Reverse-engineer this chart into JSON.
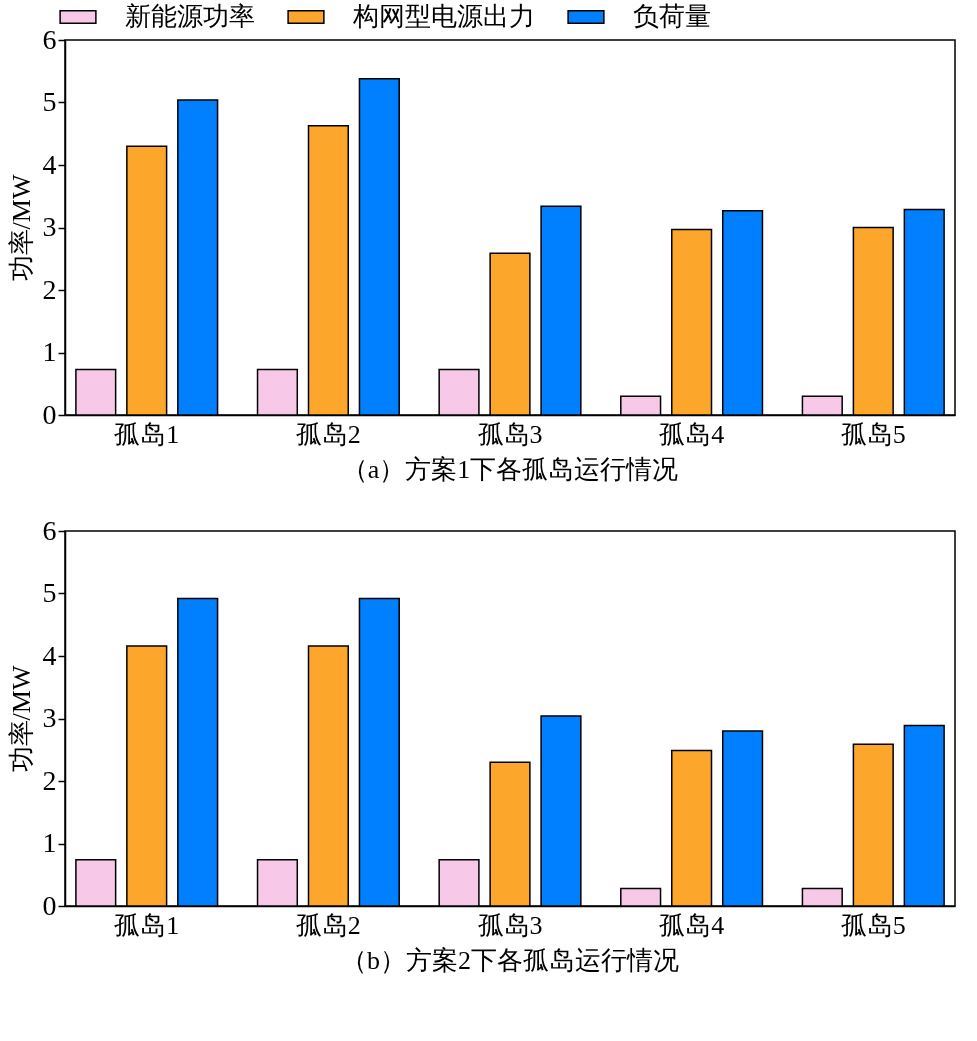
{
  "chart_data": [
    {
      "type": "bar",
      "title": "（a）方案1下各孤岛运行情况",
      "ylabel": "功率/MW",
      "categories": [
        "孤岛1",
        "孤岛2",
        "孤岛3",
        "孤岛4",
        "孤岛5"
      ],
      "series": [
        {
          "name": "新能源功率",
          "color": "#f8c8e8",
          "values": [
            0.73,
            0.73,
            0.73,
            0.3,
            0.3
          ]
        },
        {
          "name": "构网型电源出力",
          "color": "#fca62c",
          "values": [
            4.3,
            4.63,
            2.59,
            2.97,
            3.0
          ]
        },
        {
          "name": "负荷量",
          "color": "#0080ff",
          "values": [
            5.04,
            5.38,
            3.34,
            3.27,
            3.29
          ]
        }
      ],
      "ylim": [
        0,
        6
      ],
      "yticks": [
        0,
        1,
        2,
        3,
        4,
        5,
        6
      ],
      "grid": false,
      "legend": "top"
    },
    {
      "type": "bar",
      "title": "（b）方案2下各孤岛运行情况",
      "ylabel": "功率/MW",
      "categories": [
        "孤岛1",
        "孤岛2",
        "孤岛3",
        "孤岛4",
        "孤岛5"
      ],
      "series": [
        {
          "color": "#f8c8e8",
          "values": [
            0.74,
            0.74,
            0.74,
            0.28,
            0.28
          ]
        },
        {
          "color": "#fca62c",
          "values": [
            4.16,
            4.16,
            2.3,
            2.49,
            2.59
          ]
        },
        {
          "color": "#0080ff",
          "values": [
            4.92,
            4.92,
            3.04,
            2.8,
            2.89
          ]
        }
      ],
      "ylim": [
        0,
        6
      ],
      "yticks": [
        0,
        1,
        2,
        3,
        4,
        5,
        6
      ],
      "grid": false,
      "legend": false
    }
  ]
}
